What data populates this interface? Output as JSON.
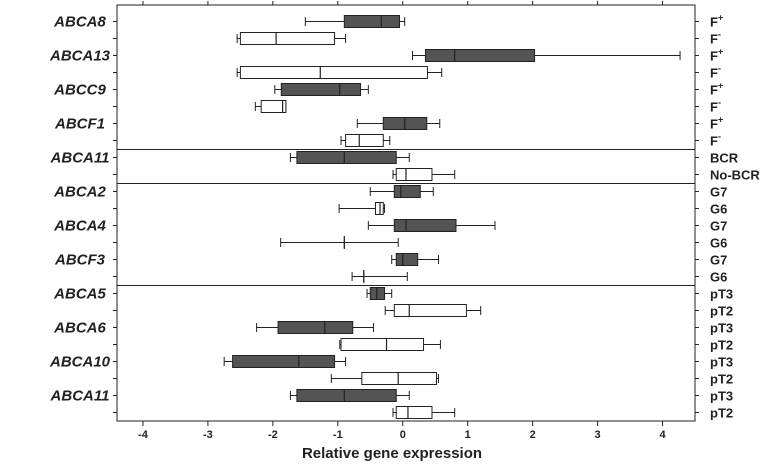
{
  "chart_data": {
    "type": "box",
    "xlabel": "Relative gene expression",
    "xlim": [
      -4.4,
      4.5
    ],
    "xticks": [
      -4,
      -3,
      -2,
      -1,
      0,
      1,
      2,
      3,
      4
    ],
    "xtick_labels": [
      "-4",
      "-3",
      "-2",
      "-1",
      "0",
      "1",
      "2",
      "3",
      "4"
    ],
    "fill_colors": {
      "dark": "#545454",
      "light": "#ffffff"
    },
    "groups": [
      {
        "gene": "ABCA8",
        "rows": [
          {
            "label": "F",
            "sup": "+",
            "fill": "dark",
            "whisker_low": -1.5,
            "q1": -0.9,
            "median": -0.33,
            "q3": -0.05,
            "whisker_high": 0.03
          },
          {
            "label": "F",
            "sup": "-",
            "fill": "light",
            "whisker_low": -2.55,
            "q1": -2.5,
            "median": -1.95,
            "q3": -1.05,
            "whisker_high": -0.88
          }
        ]
      },
      {
        "gene": "ABCA13",
        "rows": [
          {
            "label": "F",
            "sup": "+",
            "fill": "dark",
            "whisker_low": 0.15,
            "q1": 0.35,
            "median": 0.8,
            "q3": 2.03,
            "whisker_high": 4.27
          },
          {
            "label": "F",
            "sup": "-",
            "fill": "light",
            "whisker_low": -2.55,
            "q1": -2.5,
            "median": -1.27,
            "q3": 0.38,
            "whisker_high": 0.6
          }
        ]
      },
      {
        "gene": "ABCC9",
        "rows": [
          {
            "label": "F",
            "sup": "+",
            "fill": "dark",
            "whisker_low": -1.97,
            "q1": -1.87,
            "median": -0.97,
            "q3": -0.65,
            "whisker_high": -0.53
          },
          {
            "label": "F",
            "sup": "-",
            "fill": "light",
            "whisker_low": -2.27,
            "q1": -2.18,
            "median": -1.85,
            "q3": -1.8,
            "whisker_high": -1.8
          }
        ]
      },
      {
        "gene": "ABCF1",
        "rows": [
          {
            "label": "F",
            "sup": "+",
            "fill": "dark",
            "whisker_low": -0.7,
            "q1": -0.3,
            "median": 0.03,
            "q3": 0.37,
            "whisker_high": 0.57
          },
          {
            "label": "F",
            "sup": "-",
            "fill": "light",
            "whisker_low": -0.95,
            "q1": -0.88,
            "median": -0.67,
            "q3": -0.3,
            "whisker_high": -0.2
          }
        ]
      },
      {
        "gene": "ABCA11",
        "rows": [
          {
            "label": "BCR",
            "sup": "",
            "fill": "dark",
            "whisker_low": -1.73,
            "q1": -1.63,
            "median": -0.9,
            "q3": -0.1,
            "whisker_high": 0.1
          },
          {
            "label": "No-BCR",
            "sup": "",
            "fill": "light",
            "whisker_low": -0.15,
            "q1": -0.1,
            "median": 0.05,
            "q3": 0.45,
            "whisker_high": 0.8
          }
        ]
      },
      {
        "gene": "ABCA2",
        "rows": [
          {
            "label": "G7",
            "sup": "",
            "fill": "dark",
            "whisker_low": -0.5,
            "q1": -0.13,
            "median": -0.03,
            "q3": 0.27,
            "whisker_high": 0.47
          },
          {
            "label": "G6",
            "sup": "",
            "fill": "light",
            "whisker_low": -0.98,
            "q1": -0.42,
            "median": -0.35,
            "q3": -0.3,
            "whisker_high": -0.28
          }
        ]
      },
      {
        "gene": "ABCA4",
        "rows": [
          {
            "label": "G7",
            "sup": "",
            "fill": "dark",
            "whisker_low": -0.53,
            "q1": -0.13,
            "median": 0.05,
            "q3": 0.82,
            "whisker_high": 1.42
          },
          {
            "label": "G6",
            "sup": "",
            "fill": "light",
            "whisker_low": -1.88,
            "q1": -0.9,
            "median": -0.9,
            "q3": -0.9,
            "whisker_high": -0.07
          }
        ]
      },
      {
        "gene": "ABCF3",
        "rows": [
          {
            "label": "G7",
            "sup": "",
            "fill": "dark",
            "whisker_low": -0.17,
            "q1": -0.1,
            "median": 0.0,
            "q3": 0.23,
            "whisker_high": 0.55
          },
          {
            "label": "G6",
            "sup": "",
            "fill": "light",
            "whisker_low": -0.78,
            "q1": -0.6,
            "median": -0.6,
            "q3": -0.6,
            "whisker_high": 0.07
          }
        ]
      },
      {
        "gene": "ABCA5",
        "rows": [
          {
            "label": "pT3",
            "sup": "",
            "fill": "dark",
            "whisker_low": -0.55,
            "q1": -0.5,
            "median": -0.4,
            "q3": -0.28,
            "whisker_high": -0.17
          },
          {
            "label": "pT2",
            "sup": "",
            "fill": "light",
            "whisker_low": -0.27,
            "q1": -0.13,
            "median": 0.1,
            "q3": 0.98,
            "whisker_high": 1.2
          }
        ]
      },
      {
        "gene": "ABCA6",
        "rows": [
          {
            "label": "pT3",
            "sup": "",
            "fill": "dark",
            "whisker_low": -2.25,
            "q1": -1.92,
            "median": -1.2,
            "q3": -0.77,
            "whisker_high": -0.45
          },
          {
            "label": "pT2",
            "sup": "",
            "fill": "light",
            "whisker_low": -0.97,
            "q1": -0.95,
            "median": -0.25,
            "q3": 0.32,
            "whisker_high": 0.58
          }
        ]
      },
      {
        "gene": "ABCA10",
        "rows": [
          {
            "label": "pT3",
            "sup": "",
            "fill": "dark",
            "whisker_low": -2.75,
            "q1": -2.62,
            "median": -1.6,
            "q3": -1.05,
            "whisker_high": -0.88
          },
          {
            "label": "pT2",
            "sup": "",
            "fill": "light",
            "whisker_low": -1.1,
            "q1": -0.63,
            "median": -0.07,
            "q3": 0.52,
            "whisker_high": 0.55
          }
        ]
      },
      {
        "gene": "ABCA11",
        "rows": [
          {
            "label": "pT3",
            "sup": "",
            "fill": "dark",
            "whisker_low": -1.73,
            "q1": -1.63,
            "median": -0.9,
            "q3": -0.1,
            "whisker_high": 0.1
          },
          {
            "label": "pT2",
            "sup": "",
            "fill": "light",
            "whisker_low": -0.15,
            "q1": -0.1,
            "median": 0.08,
            "q3": 0.45,
            "whisker_high": 0.8
          }
        ]
      }
    ],
    "separators_after_groups": [
      3,
      4,
      7
    ]
  }
}
